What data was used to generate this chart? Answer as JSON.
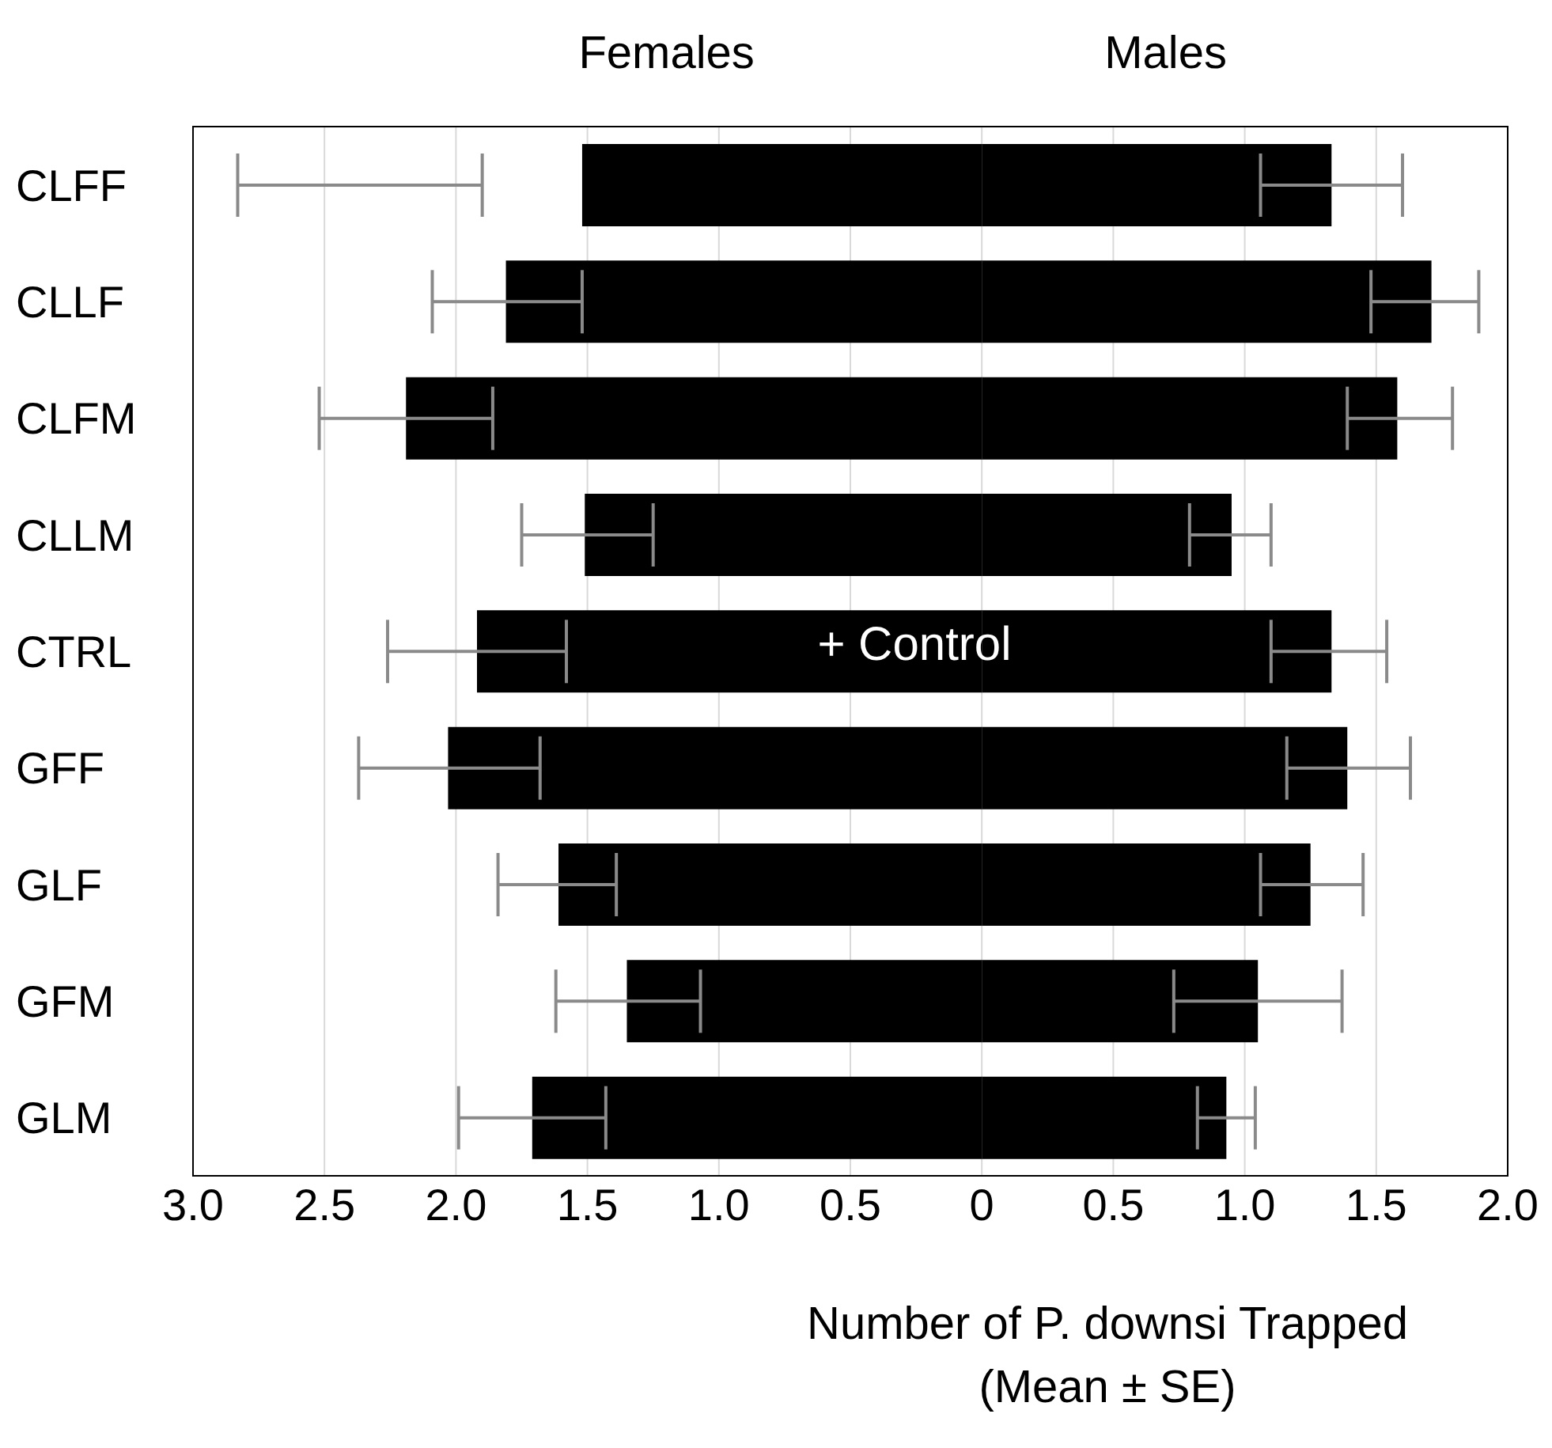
{
  "chart_data": {
    "type": "bar",
    "orientation": "horizontal",
    "xlabel": "Number of P. downsi Trapped\n(Mean ± SE)",
    "categories": [
      "CLFF",
      "CLLF",
      "CLFM",
      "CLLM",
      "CTRL",
      "GFF",
      "GLF",
      "GFM",
      "GLM"
    ],
    "series": [
      {
        "name": "Females",
        "color": "#000000",
        "values": [
          -1.52,
          -1.81,
          -2.19,
          -1.51,
          -1.92,
          -2.03,
          -1.61,
          -1.35,
          -1.71
        ],
        "errors": [
          [
            -2.83,
            -1.9
          ],
          [
            -2.09,
            -1.52
          ],
          [
            -2.52,
            -1.86
          ],
          [
            -1.75,
            -1.25
          ],
          [
            -2.26,
            -1.58
          ],
          [
            -2.37,
            -1.68
          ],
          [
            -1.84,
            -1.39
          ],
          [
            -1.62,
            -1.07
          ],
          [
            -1.99,
            -1.43
          ]
        ]
      },
      {
        "name": "Males",
        "color": "#000000",
        "values": [
          1.33,
          1.71,
          1.58,
          0.95,
          1.33,
          1.39,
          1.25,
          1.05,
          0.93
        ],
        "errors": [
          [
            1.06,
            1.6
          ],
          [
            1.48,
            1.89
          ],
          [
            1.39,
            1.79
          ],
          [
            0.79,
            1.1
          ],
          [
            1.1,
            1.54
          ],
          [
            1.16,
            1.63
          ],
          [
            1.06,
            1.45
          ],
          [
            0.73,
            1.37
          ],
          [
            0.82,
            1.04
          ]
        ]
      }
    ],
    "xlim": [
      -3,
      2
    ],
    "xticks": [
      {
        "value": -3,
        "label": "3.0"
      },
      {
        "value": -2.5,
        "label": "2.5"
      },
      {
        "value": -2,
        "label": "2.0"
      },
      {
        "value": -1.5,
        "label": "1.5"
      },
      {
        "value": -1,
        "label": "1.0"
      },
      {
        "value": -0.5,
        "label": "0.5"
      },
      0,
      0.5,
      {
        "value": 1,
        "label": "1.0"
      },
      1.5,
      {
        "value": 2,
        "label": "2.0"
      }
    ],
    "grid": "x",
    "stacked": true,
    "annotations": [
      "+ Control"
    ]
  }
}
